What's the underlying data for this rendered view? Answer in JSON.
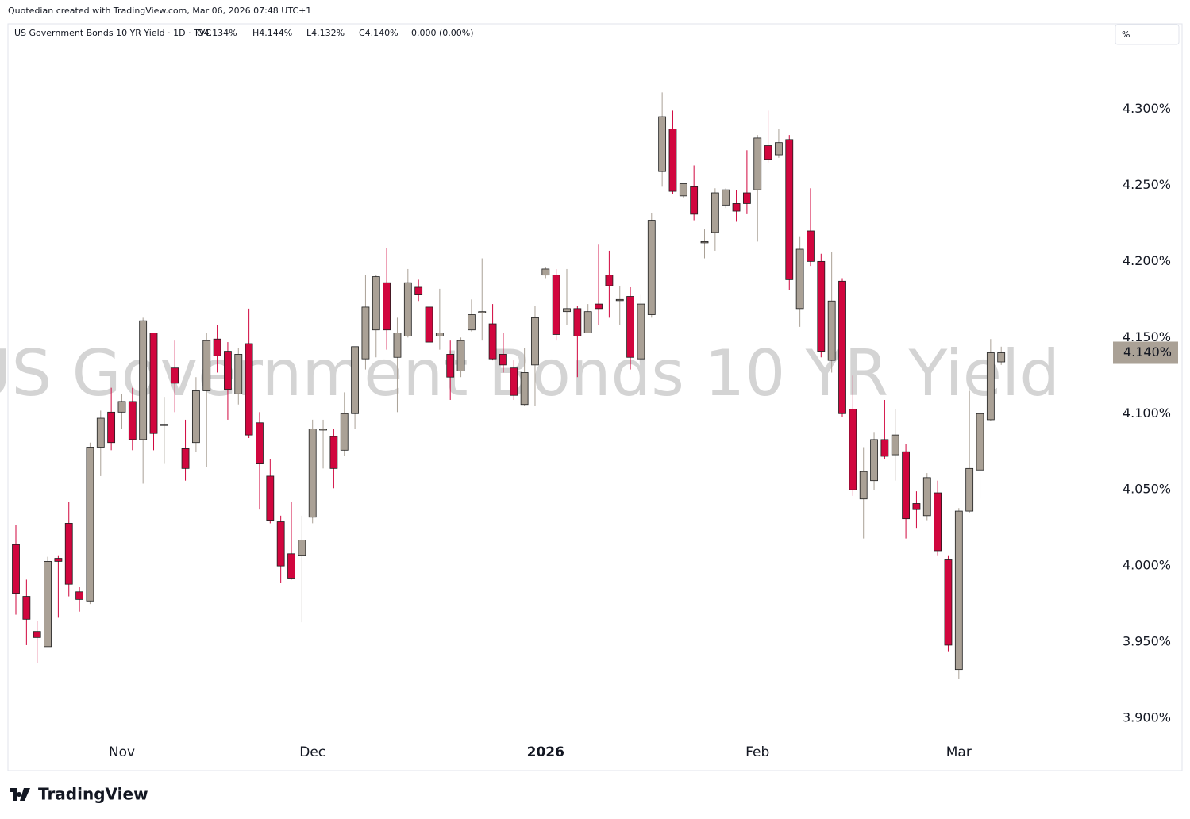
{
  "chart_data": {
    "type": "candlestick",
    "credit": "Quotedian created with TradingView.com, Mar 06, 2026 07:48 UTC+1",
    "title": "US Government Bonds 10 YR Yield · 1D · TVC",
    "readouts": [
      "O4.134%",
      "H4.144%",
      "L4.132%",
      "C4.140%",
      "0.000 (0.00%)"
    ],
    "watermark": "US Government Bonds 10 YR Yield",
    "unit_button": "%",
    "brand": "TradingView",
    "up_color": "#aaa196",
    "down_color": "#d1063e",
    "open": [
      4.014,
      3.98,
      3.957,
      3.947,
      4.005,
      4.028,
      3.983,
      3.977,
      4.078,
      4.101,
      4.101,
      4.108,
      4.083,
      4.153,
      4.093,
      4.13,
      4.077,
      4.081,
      4.115,
      4.149,
      4.141,
      4.113,
      4.146,
      4.094,
      4.059,
      4.029,
      4.008,
      4.007,
      4.032,
      4.09,
      4.085,
      4.076,
      4.1,
      4.136,
      4.155,
      4.186,
      4.137,
      4.151,
      4.183,
      4.17,
      4.151,
      4.139,
      4.128,
      4.155,
      4.167,
      4.159,
      4.139,
      4.13,
      4.106,
      4.132,
      4.191,
      4.191,
      4.167,
      4.169,
      4.153,
      4.172,
      4.191,
      4.175,
      4.177,
      4.136,
      4.165,
      4.259,
      4.287,
      4.243,
      4.249,
      4.213,
      4.219,
      4.237,
      4.238,
      4.245,
      4.247,
      4.276,
      4.27,
      4.28,
      4.169,
      4.22,
      4.2,
      4.135,
      4.187,
      4.103,
      4.044,
      4.056,
      4.083,
      4.073,
      4.075,
      4.041,
      4.033,
      4.048,
      4.004,
      3.932,
      4.036,
      4.063,
      4.096,
      4.134
    ],
    "high": [
      4.027,
      3.991,
      3.964,
      4.006,
      4.007,
      4.042,
      3.986,
      4.081,
      4.102,
      4.117,
      4.113,
      4.117,
      4.163,
      4.153,
      4.111,
      4.148,
      4.096,
      4.124,
      4.153,
      4.158,
      4.147,
      4.143,
      4.169,
      4.101,
      4.07,
      4.033,
      4.042,
      4.033,
      4.096,
      4.096,
      4.09,
      4.114,
      4.144,
      4.191,
      4.191,
      4.209,
      4.163,
      4.195,
      4.188,
      4.198,
      4.182,
      4.148,
      4.15,
      4.175,
      4.202,
      4.172,
      4.153,
      4.135,
      4.143,
      4.171,
      4.196,
      4.195,
      4.195,
      4.171,
      4.172,
      4.211,
      4.207,
      4.184,
      4.183,
      4.178,
      4.232,
      4.311,
      4.299,
      4.251,
      4.263,
      4.221,
      4.248,
      4.248,
      4.247,
      4.273,
      4.283,
      4.299,
      4.287,
      4.283,
      4.216,
      4.248,
      4.205,
      4.206,
      4.189,
      4.125,
      4.078,
      4.088,
      4.109,
      4.103,
      4.08,
      4.049,
      4.061,
      4.056,
      4.007,
      4.038,
      4.115,
      4.114,
      4.149,
      4.144
    ],
    "low": [
      3.968,
      3.948,
      3.936,
      3.947,
      3.966,
      3.98,
      3.97,
      3.975,
      4.059,
      4.076,
      4.09,
      4.076,
      4.054,
      4.076,
      4.067,
      4.101,
      4.056,
      4.075,
      4.065,
      4.127,
      4.096,
      4.106,
      4.084,
      4.037,
      4.028,
      3.989,
      3.991,
      3.963,
      4.028,
      4.064,
      4.051,
      4.072,
      4.09,
      4.129,
      4.137,
      4.142,
      4.101,
      4.15,
      4.174,
      4.142,
      4.142,
      4.109,
      4.124,
      4.154,
      4.148,
      4.135,
      4.127,
      4.109,
      4.105,
      4.105,
      4.189,
      4.148,
      4.158,
      4.124,
      4.153,
      4.158,
      4.163,
      4.158,
      4.129,
      4.133,
      4.163,
      4.249,
      4.244,
      4.242,
      4.227,
      4.202,
      4.207,
      4.235,
      4.226,
      4.231,
      4.213,
      4.265,
      4.268,
      4.181,
      4.157,
      4.197,
      4.137,
      4.127,
      4.098,
      4.046,
      4.018,
      4.05,
      4.07,
      4.056,
      4.018,
      4.025,
      4.03,
      4.007,
      3.944,
      3.926,
      4.035,
      4.044,
      4.095,
      4.132
    ],
    "close": [
      3.982,
      3.965,
      3.953,
      4.003,
      4.003,
      3.988,
      3.978,
      4.078,
      4.097,
      4.081,
      4.108,
      4.083,
      4.161,
      4.087,
      4.093,
      4.12,
      4.064,
      4.115,
      4.148,
      4.138,
      4.116,
      4.139,
      4.086,
      4.067,
      4.03,
      4.0,
      3.992,
      4.017,
      4.09,
      4.09,
      4.064,
      4.1,
      4.144,
      4.17,
      4.19,
      4.155,
      4.153,
      4.186,
      4.178,
      4.147,
      4.153,
      4.124,
      4.148,
      4.165,
      4.167,
      4.136,
      4.132,
      4.112,
      4.127,
      4.163,
      4.195,
      4.152,
      4.169,
      4.151,
      4.167,
      4.169,
      4.184,
      4.175,
      4.137,
      4.172,
      4.227,
      4.295,
      4.246,
      4.251,
      4.231,
      4.213,
      4.245,
      4.247,
      4.233,
      4.238,
      4.281,
      4.267,
      4.278,
      4.188,
      4.208,
      4.2,
      4.141,
      4.174,
      4.1,
      4.05,
      4.062,
      4.083,
      4.072,
      4.086,
      4.031,
      4.037,
      4.058,
      4.01,
      3.948,
      4.036,
      4.064,
      4.1,
      4.14,
      4.14
    ],
    "xlim": [
      -0.75,
      103.4
    ],
    "xticks": [
      {
        "value": 10,
        "label": "Nov"
      },
      {
        "value": 28,
        "label": "Dec"
      },
      {
        "value": 50,
        "label": "2026"
      },
      {
        "value": 70,
        "label": "Feb"
      },
      {
        "value": 89,
        "label": "Mar"
      }
    ],
    "ylim": [
      3.887,
      4.356
    ],
    "yticks": [
      {
        "value": 3.9,
        "label": "3.900%"
      },
      {
        "value": 3.95,
        "label": "3.950%"
      },
      {
        "value": 4.0,
        "label": "4.000%"
      },
      {
        "value": 4.05,
        "label": "4.050%"
      },
      {
        "value": 4.1,
        "label": "4.100%"
      },
      {
        "value": 4.15,
        "label": "4.150%"
      },
      {
        "value": 4.2,
        "label": "4.200%"
      },
      {
        "value": 4.25,
        "label": "4.250%"
      },
      {
        "value": 4.3,
        "label": "4.300%"
      }
    ],
    "last_price": {
      "value": 4.14,
      "label": "4.140%"
    }
  }
}
